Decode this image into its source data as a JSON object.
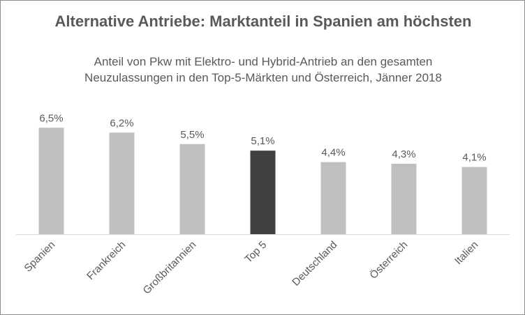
{
  "chart_data": {
    "type": "bar",
    "title": "Alternative Antriebe: Marktanteil in Spanien am höchsten",
    "subtitle": "Anteil von Pkw mit Elektro- und Hybrid-Antrieb an den gesamten Neuzulassungen in den Top-5-Märkten und Österreich, Jänner 2018",
    "categories": [
      "Spanien",
      "Frankreich",
      "Großbritannien",
      "Top 5",
      "Deutschland",
      "Österreich",
      "Italien"
    ],
    "values": [
      6.5,
      6.2,
      5.5,
      5.1,
      4.4,
      4.3,
      4.1
    ],
    "data_labels": [
      "6,5%",
      "6,2%",
      "5,5%",
      "5,1%",
      "4,4%",
      "4,3%",
      "4,1%"
    ],
    "unit": "%",
    "highlight_category": "Top 5",
    "colors": {
      "bar": "#bfbfbf",
      "highlight": "#404040",
      "text": "#595959",
      "axis": "#d9d9d9"
    },
    "xlabel": "",
    "ylabel": "",
    "grid": false,
    "legend": "none"
  }
}
